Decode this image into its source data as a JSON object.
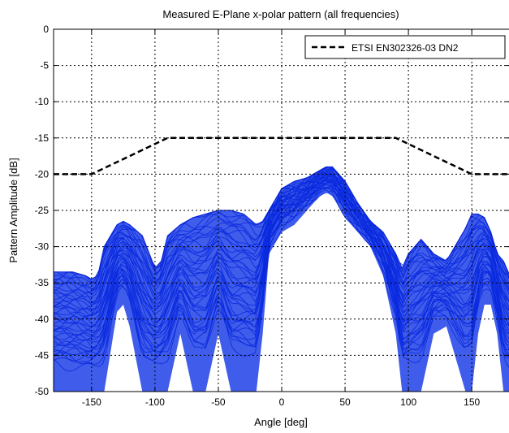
{
  "chart_data": {
    "type": "line",
    "title": "Measured E-Plane x-polar pattern (all frequencies)",
    "xlabel": "Angle [deg]",
    "ylabel": "Pattern Amplitude [dB]",
    "xlim": [
      -180,
      180
    ],
    "ylim": [
      -50,
      0
    ],
    "x_ticks": [
      -150,
      -100,
      -50,
      0,
      50,
      100,
      150
    ],
    "y_ticks": [
      0,
      -5,
      -10,
      -15,
      -20,
      -25,
      -30,
      -35,
      -40,
      -45,
      -50
    ],
    "grid": true,
    "legend_position": "top-right",
    "series": [
      {
        "name": "ETSI EN302326-03 DN2",
        "style": "dashed",
        "color": "#000000",
        "x": [
          -180,
          -150,
          -90,
          90,
          150,
          180
        ],
        "y": [
          -20,
          -20,
          -15,
          -15,
          -20,
          -20
        ]
      }
    ],
    "measured_band": {
      "color": "#1f3fe6",
      "envelope": {
        "x": [
          -180,
          -165,
          -155,
          -150,
          -145,
          -140,
          -130,
          -125,
          -120,
          -110,
          -100,
          -95,
          -90,
          -80,
          -70,
          -60,
          -50,
          -40,
          -30,
          -20,
          -15,
          -10,
          0,
          10,
          20,
          30,
          35,
          40,
          50,
          60,
          70,
          80,
          90,
          95,
          100,
          110,
          120,
          130,
          140,
          145,
          150,
          155,
          160,
          165,
          170,
          175,
          180
        ],
        "y_top": [
          -33.5,
          -33.5,
          -34,
          -34.5,
          -34,
          -30,
          -27,
          -26.5,
          -27,
          -28.5,
          -33,
          -32,
          -28.5,
          -27,
          -26,
          -25.5,
          -25,
          -25,
          -25.5,
          -27,
          -26.5,
          -25,
          -22,
          -21,
          -20.5,
          -19.5,
          -19,
          -19,
          -21,
          -24,
          -26.5,
          -28,
          -31,
          -33,
          -31,
          -29,
          -31,
          -32,
          -29,
          -27.5,
          -25.5,
          -25.5,
          -26,
          -28,
          -31,
          -32,
          -34
        ],
        "y_bottom": [
          -50,
          -50,
          -50,
          -50,
          -50,
          -50,
          -39,
          -38,
          -41,
          -50,
          -50,
          -50,
          -50,
          -42,
          -50,
          -50,
          -42,
          -50,
          -50,
          -50,
          -42,
          -31,
          -28,
          -27,
          -25,
          -23,
          -22.5,
          -23,
          -26,
          -28,
          -30,
          -34,
          -42,
          -50,
          -50,
          -50,
          -42,
          -41,
          -47,
          -50,
          -50,
          -42,
          -38,
          -38,
          -42,
          -50,
          -50
        ]
      }
    },
    "legend": [
      {
        "label": "ETSI EN302326-03 DN2",
        "style": "dashed",
        "color": "#000000"
      }
    ]
  }
}
